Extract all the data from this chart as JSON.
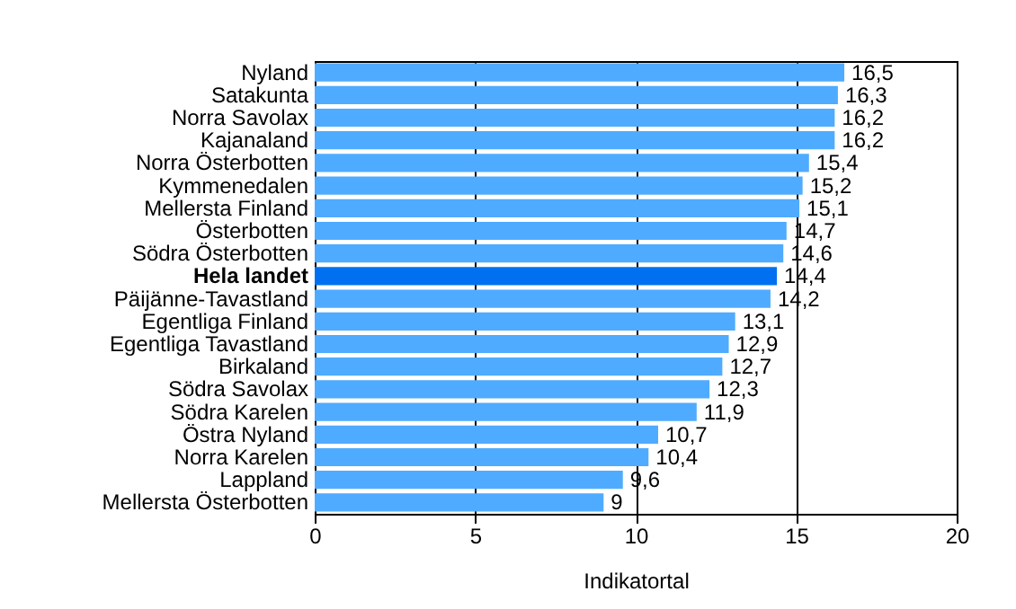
{
  "chart_data": {
    "type": "bar",
    "orientation": "horizontal",
    "xlabel": "Indikatortal",
    "categories": [
      "Nyland",
      "Satakunta",
      "Norra Savolax",
      "Kajanaland",
      "Norra Österbotten",
      "Kymmenedalen",
      "Mellersta Finland",
      "Österbotten",
      "Södra Österbotten",
      "Hela landet",
      "Päijänne-Tavastland",
      "Egentliga Finland",
      "Egentliga Tavastland",
      "Birkaland",
      "Södra Savolax",
      "Södra Karelen",
      "Östra Nyland",
      "Norra Karelen",
      "Lappland",
      "Mellersta Österbotten"
    ],
    "values": [
      16.5,
      16.3,
      16.2,
      16.2,
      15.4,
      15.2,
      15.1,
      14.7,
      14.6,
      14.4,
      14.2,
      13.1,
      12.9,
      12.7,
      12.3,
      11.9,
      10.7,
      10.4,
      9.6,
      9
    ],
    "value_labels": [
      "16,5",
      "16,3",
      "16,2",
      "16,2",
      "15,4",
      "15,2",
      "15,1",
      "14,7",
      "14,6",
      "14,4",
      "14,2",
      "13,1",
      "12,9",
      "12,7",
      "12,3",
      "11,9",
      "10,7",
      "10,4",
      "9,6",
      "9"
    ],
    "colors": [
      "#4fabff",
      "#4fabff",
      "#4fabff",
      "#4fabff",
      "#4fabff",
      "#4fabff",
      "#4fabff",
      "#4fabff",
      "#4fabff",
      "#0070f0",
      "#4fabff",
      "#4fabff",
      "#4fabff",
      "#4fabff",
      "#4fabff",
      "#4fabff",
      "#4fabff",
      "#4fabff",
      "#4fabff",
      "#4fabff"
    ],
    "xlim": [
      0,
      20
    ],
    "xticks": [
      0,
      5,
      10,
      15,
      20
    ],
    "grid": true
  }
}
